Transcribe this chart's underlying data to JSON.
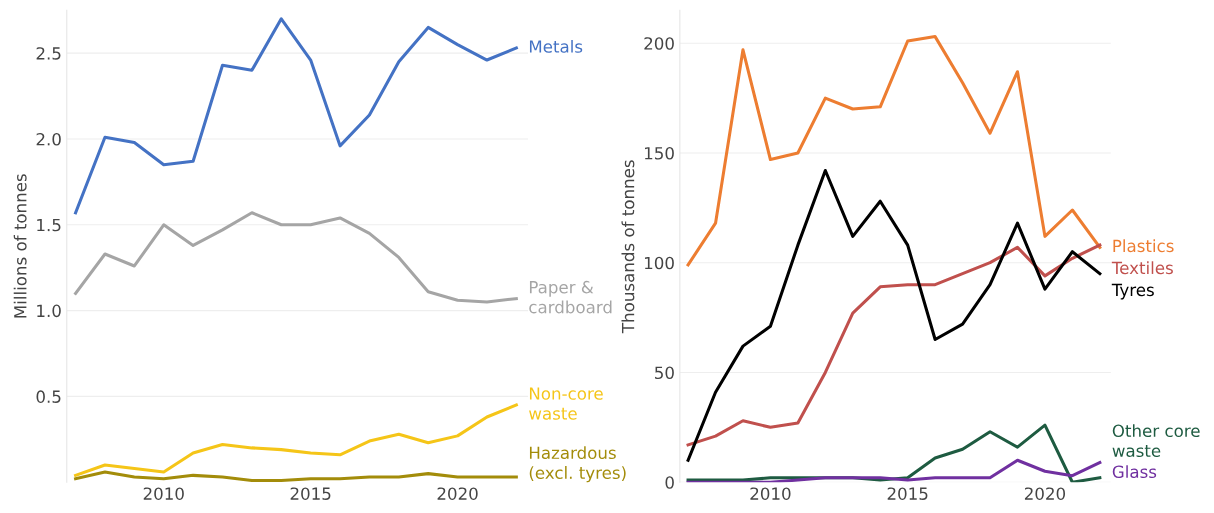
{
  "chart_data": [
    {
      "type": "line",
      "ylabel": "Millions of tonnes",
      "x": [
        2007,
        2008,
        2009,
        2010,
        2011,
        2012,
        2013,
        2014,
        2015,
        2016,
        2017,
        2018,
        2019,
        2020,
        2021,
        2022
      ],
      "xlim": [
        2006.7,
        2022.4
      ],
      "xticks": [
        2010,
        2015,
        2020
      ],
      "ylim": [
        0,
        2.75
      ],
      "yticks": [
        {
          "value": 0.5,
          "label": "0.5"
        },
        {
          "value": 1,
          "label": "1.0"
        },
        {
          "value": 1.5,
          "label": "1.5"
        },
        {
          "value": 2,
          "label": "2.0"
        },
        {
          "value": 2.5,
          "label": "2.5"
        }
      ],
      "grid": "y",
      "legend": false,
      "series": [
        {
          "name": "Metals",
          "color": "#4472c4",
          "values": [
            1.57,
            2.01,
            1.98,
            1.85,
            1.87,
            2.43,
            2.4,
            2.7,
            2.46,
            1.96,
            2.14,
            2.45,
            2.65,
            2.55,
            2.46,
            2.53
          ]
        },
        {
          "name": "Paper &\ncardboard",
          "color": "#a5a5a5",
          "values": [
            1.1,
            1.33,
            1.26,
            1.5,
            1.38,
            1.47,
            1.57,
            1.5,
            1.5,
            1.54,
            1.45,
            1.31,
            1.11,
            1.06,
            1.05,
            1.07
          ]
        },
        {
          "name": "Non-core\nwaste",
          "color": "#f5c518",
          "values": [
            0.04,
            0.1,
            0.08,
            0.06,
            0.17,
            0.22,
            0.2,
            0.19,
            0.17,
            0.16,
            0.24,
            0.28,
            0.23,
            0.27,
            0.38,
            0.45
          ]
        },
        {
          "name": "Hazardous\n(excl. tyres)",
          "color": "#a38c0a",
          "values": [
            0.02,
            0.06,
            0.03,
            0.02,
            0.04,
            0.03,
            0.01,
            0.01,
            0.02,
            0.02,
            0.03,
            0.03,
            0.05,
            0.03,
            0.03,
            0.03
          ]
        }
      ]
    },
    {
      "type": "line",
      "ylabel": "Thousands of tonnes",
      "x": [
        2007,
        2008,
        2009,
        2010,
        2011,
        2012,
        2013,
        2014,
        2015,
        2016,
        2017,
        2018,
        2019,
        2020,
        2021,
        2022
      ],
      "xlim": [
        2006.7,
        2022.4
      ],
      "xticks": [
        2010,
        2015,
        2020
      ],
      "ylim": [
        0,
        215
      ],
      "yticks": [
        0,
        50,
        100,
        150,
        200
      ],
      "grid": "y",
      "legend": false,
      "series": [
        {
          "name": "Plastics",
          "color": "#ed7d31",
          "values": [
            99,
            118,
            197,
            147,
            150,
            175,
            170,
            171,
            201,
            203,
            182,
            159,
            187,
            112,
            124,
            107
          ]
        },
        {
          "name": "Textiles",
          "color": "#c0504d",
          "values": [
            17,
            21,
            28,
            25,
            27,
            50,
            77,
            89,
            90,
            90,
            95,
            100,
            107,
            94,
            102,
            108
          ]
        },
        {
          "name": "Tyres",
          "color": "#000000",
          "values": [
            10,
            41,
            62,
            71,
            108,
            142,
            112,
            128,
            108,
            65,
            72,
            90,
            118,
            88,
            105,
            95
          ]
        },
        {
          "name": "Other core\nwaste",
          "color": "#1e5b41",
          "values": [
            1,
            1,
            1,
            2,
            2,
            2,
            2,
            1,
            2,
            11,
            15,
            23,
            16,
            26,
            0,
            2
          ]
        },
        {
          "name": "Glass",
          "color": "#7030a0",
          "values": [
            0,
            0,
            0,
            0,
            1,
            2,
            2,
            2,
            1,
            2,
            2,
            2,
            10,
            5,
            3,
            9
          ]
        }
      ]
    }
  ]
}
